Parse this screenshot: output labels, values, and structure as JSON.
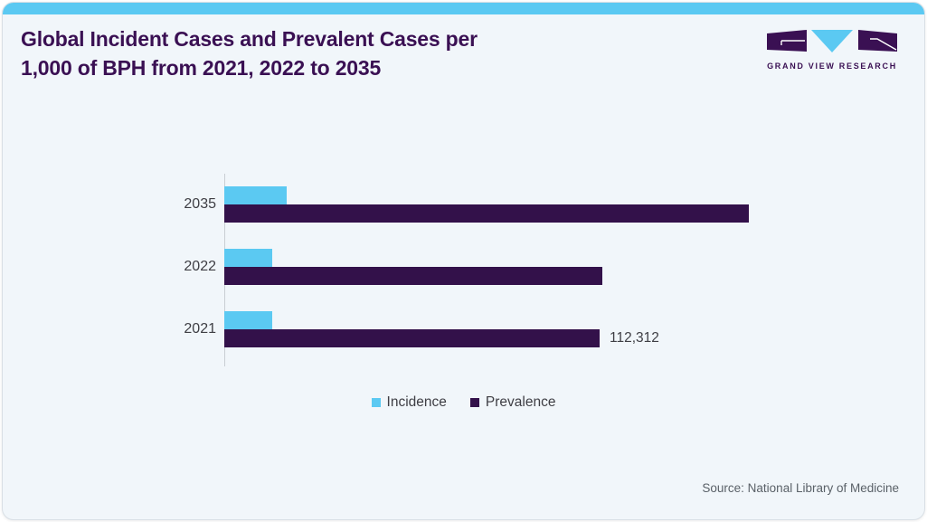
{
  "header": {
    "title_line1": "Global Incident Cases and Prevalent Cases per",
    "title_line2": "1,000 of BPH from 2021, 2022 to 2035"
  },
  "logo": {
    "text": "GRAND VIEW RESEARCH"
  },
  "chart_data": {
    "type": "bar",
    "orientation": "horizontal",
    "title": "Global Incident Cases and Prevalent Cases per 1,000 of BPH from 2021, 2022 to 2035",
    "categories": [
      "2035",
      "2022",
      "2021"
    ],
    "series": [
      {
        "name": "Incidence",
        "color": "#5bc9f2",
        "values": [
          18700,
          14300,
          14300
        ],
        "labels": [
          "",
          "",
          ""
        ]
      },
      {
        "name": "Prevalence",
        "color": "#33114a",
        "values": [
          156900,
          113100,
          112312
        ],
        "labels": [
          "",
          "",
          "112,312"
        ]
      }
    ],
    "xlim": [
      0,
      160000
    ],
    "grid": false,
    "legend_position": "bottom-center"
  },
  "footer": {
    "source": "Source: National Library of Medicine"
  },
  "colors": {
    "accent_cyan": "#5bc9f2",
    "accent_purple": "#33114a",
    "title_purple": "#3a1053",
    "card_background": "#f1f6fa"
  }
}
